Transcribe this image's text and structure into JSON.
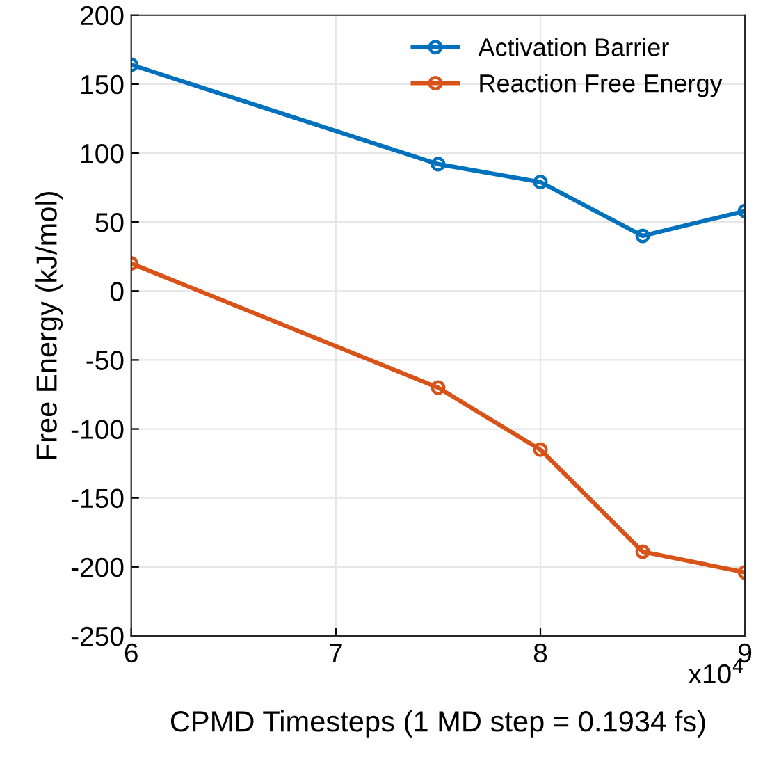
{
  "chart_data": {
    "type": "line",
    "xlabel": "CPMD Timesteps (1 MD step = 0.1934 fs)",
    "ylabel": "Free Energy (kJ/mol)",
    "x": [
      6,
      7.5,
      8,
      8.5,
      9
    ],
    "series": [
      {
        "name": "Activation Barrier",
        "color": "#0072bd",
        "values": [
          164,
          92,
          79,
          40,
          58
        ]
      },
      {
        "name": "Reaction Free Energy",
        "color": "#d95319",
        "values": [
          20,
          -70,
          -115,
          -189,
          -204
        ]
      }
    ],
    "xlim": [
      6,
      9
    ],
    "xticks": [
      6,
      7,
      8,
      9
    ],
    "ylim": [
      -250,
      200
    ],
    "yticks": [
      -250,
      -200,
      -150,
      -100,
      -50,
      0,
      50,
      100,
      150,
      200
    ],
    "annotations": [
      "x10$^{4}$"
    ],
    "grid": true,
    "legend": "top right",
    "marker": "circle",
    "line_style": "solid"
  }
}
